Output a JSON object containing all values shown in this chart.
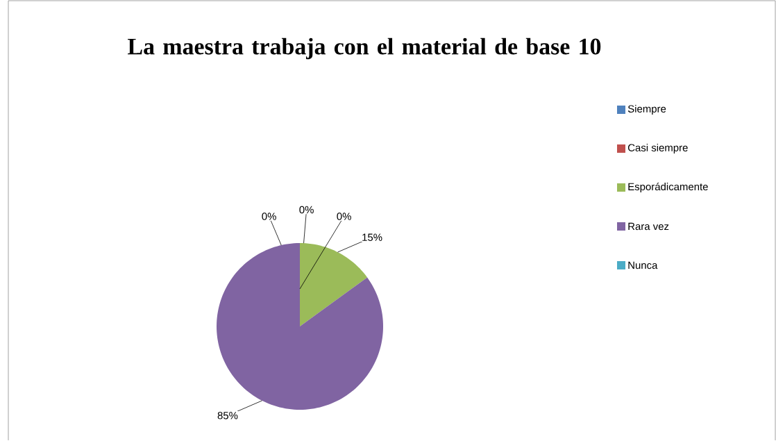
{
  "chart_data": {
    "type": "pie",
    "title": "La maestra trabaja con el material de base 10",
    "categories": [
      "Siempre",
      "Casi siempre",
      "Esporádicamente",
      "Rara vez",
      "Nunca"
    ],
    "values": [
      0,
      0,
      15,
      85,
      0
    ],
    "value_labels": [
      "0%",
      "0%",
      "15%",
      "85%",
      "0%"
    ],
    "colors": [
      "#4f81bd",
      "#c0504d",
      "#9bbb59",
      "#8064a2",
      "#4bacc6"
    ],
    "legend": "right"
  }
}
